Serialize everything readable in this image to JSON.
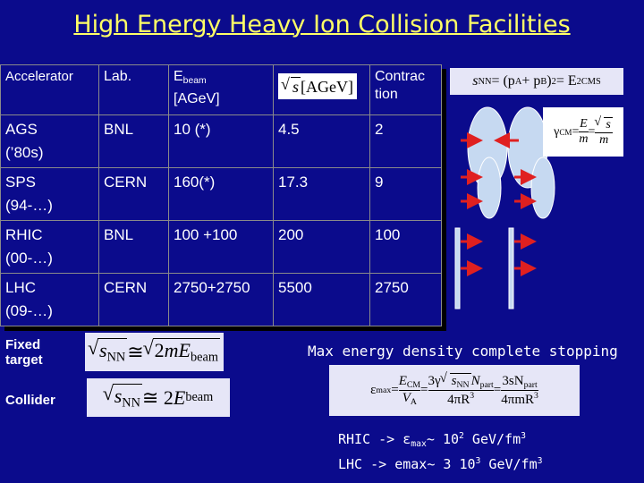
{
  "title": "High Energy Heavy Ion Collision Facilities",
  "table": {
    "header": [
      [
        {
          "t": "Accelerator"
        }
      ],
      [
        {
          "t": "Lab."
        }
      ],
      [
        {
          "t": "E"
        },
        {
          "t": "beam",
          "v": "sub"
        },
        {
          "t": "[AGeV]",
          "v": "line"
        }
      ],
      [
        {
          "root": [
            {
              "t": "s",
              "v": "i"
            }
          ]
        },
        {
          "t": "[AGeV]"
        }
      ],
      [
        {
          "t": "Contrac",
          "v": "line"
        },
        {
          "t": "tion",
          "v": "line"
        }
      ]
    ],
    "rows": [
      [
        [
          {
            "t": "AGS",
            "v": "line"
          },
          {
            "t": "(’80s)",
            "v": "line"
          }
        ],
        "BNL",
        "10 (*)",
        "4.5",
        "2"
      ],
      [
        [
          {
            "t": "SPS",
            "v": "line"
          },
          {
            "t": "(94-…)",
            "v": "line"
          }
        ],
        "CERN",
        "160(*)",
        "17.3",
        "9"
      ],
      [
        [
          {
            "t": "RHIC",
            "v": "line"
          },
          {
            "t": "(00-…)",
            "v": "line"
          }
        ],
        "BNL",
        "100 +100",
        "200",
        "100"
      ],
      [
        [
          {
            "t": "LHC",
            "v": "line"
          },
          {
            "t": "(09-…)",
            "v": "line"
          }
        ],
        "CERN",
        "2750+2750",
        "5500",
        "2750"
      ]
    ]
  },
  "formulas": {
    "snn": [
      {
        "t": "s",
        "v": "i"
      },
      {
        "t": "NN",
        "v": "sub"
      },
      {
        "t": " = (p"
      },
      {
        "t": "A",
        "v": "sub"
      },
      {
        "t": " + p"
      },
      {
        "t": "B",
        "v": "sub"
      },
      {
        "t": ")"
      },
      {
        "t": "2",
        "v": "sup"
      },
      {
        "t": " = E"
      },
      {
        "t": "2",
        "v": "sup"
      },
      {
        "t": "CMS",
        "v": "sub"
      }
    ],
    "gamma": [
      {
        "t": "γ"
      },
      {
        "t": "CM",
        "v": "sub"
      },
      {
        "t": " = "
      },
      {
        "num": [
          {
            "t": "E",
            "v": "i"
          }
        ],
        "den": [
          {
            "t": "m",
            "v": "i"
          }
        ]
      },
      {
        "t": " = "
      },
      {
        "num": [
          {
            "root": [
              {
                "t": "s",
                "v": "i"
              }
            ]
          }
        ],
        "den": [
          {
            "t": "m",
            "v": "i"
          }
        ]
      }
    ],
    "fixed": [
      {
        "root": [
          {
            "t": "s",
            "v": "i"
          },
          {
            "t": "NN",
            "v": "sub"
          }
        ]
      },
      {
        "t": " ≅ "
      },
      {
        "root": [
          {
            "t": "2"
          },
          {
            "t": "mE",
            "v": "i"
          },
          {
            "t": "beam",
            "v": "sub"
          }
        ]
      }
    ],
    "collider": [
      {
        "root": [
          {
            "t": "s",
            "v": "i"
          },
          {
            "t": "NN",
            "v": "sub"
          }
        ]
      },
      {
        "t": " ≅ 2"
      },
      {
        "t": "E",
        "v": "i"
      },
      {
        "t": "beam",
        "v": "sub"
      }
    ],
    "epsilon": [
      {
        "t": "ε"
      },
      {
        "t": "max",
        "v": "sub"
      },
      {
        "t": " = "
      },
      {
        "num": [
          {
            "t": "E",
            "v": "i"
          },
          {
            "t": "CM",
            "v": "sub"
          }
        ],
        "den": [
          {
            "t": "V",
            "v": "i"
          },
          {
            "t": "A",
            "v": "sub"
          }
        ]
      },
      {
        "t": " = "
      },
      {
        "num": [
          {
            "t": "3γ"
          },
          {
            "root": [
              {
                "t": "s",
                "v": "i"
              },
              {
                "t": "NN",
                "v": "sub"
              }
            ]
          },
          {
            "t": "N",
            "v": "i"
          },
          {
            "t": "part",
            "v": "sub"
          }
        ],
        "den": [
          {
            "t": "4πR"
          },
          {
            "t": "3",
            "v": "sup"
          }
        ]
      },
      {
        "t": " = "
      },
      {
        "num": [
          {
            "t": "3sN"
          },
          {
            "t": "part",
            "v": "sub"
          }
        ],
        "den": [
          {
            "t": "4πmR"
          },
          {
            "t": "3",
            "v": "sup"
          }
        ]
      }
    ]
  },
  "labels": {
    "fixed": "Fixed target",
    "collider": "Collider",
    "stopping": "Max energy density complete stopping"
  },
  "notes": {
    "rhic": [
      {
        "t": "RHIC -> "
      },
      {
        "t": "ε"
      },
      {
        "t": "max",
        "v": "sub"
      },
      {
        "t": "~ 10"
      },
      {
        "t": "2",
        "v": "sup"
      },
      {
        "t": " GeV/fm"
      },
      {
        "t": "3",
        "v": "sup"
      }
    ],
    "lhc": [
      {
        "t": "LHC -> emax~ 3 10"
      },
      {
        "t": "3",
        "v": "sup"
      },
      {
        "t": " GeV/fm"
      },
      {
        "t": "3",
        "v": "sup"
      }
    ]
  }
}
